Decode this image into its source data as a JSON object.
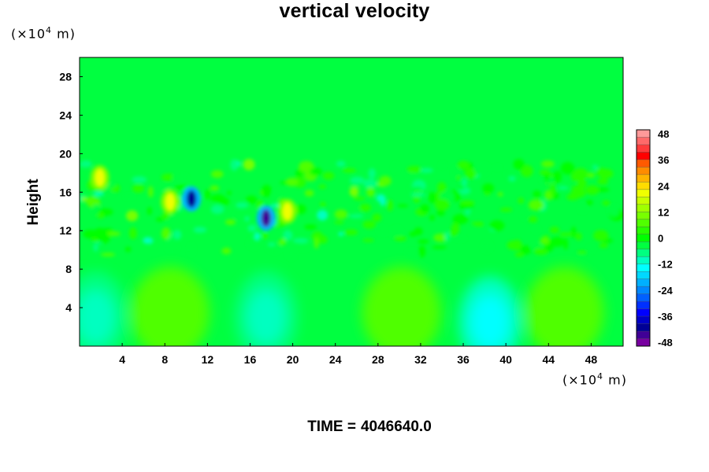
{
  "chart_data": {
    "type": "heatmap",
    "title": "vertical velocity",
    "ylabel": "Height",
    "xlabel": "",
    "x_unit_prefix": "(×10",
    "x_unit_exp": "4",
    "x_unit_suffix": " m)",
    "y_unit_prefix": "(×10",
    "y_unit_exp": "4",
    "y_unit_suffix": " m)",
    "xlim": [
      0,
      51
    ],
    "ylim": [
      0,
      30
    ],
    "xticks": [
      4,
      8,
      12,
      16,
      20,
      24,
      28,
      32,
      36,
      40,
      44,
      48
    ],
    "yticks": [
      4,
      8,
      12,
      16,
      20,
      24,
      28
    ],
    "colorbar": {
      "min": -48,
      "max": 48,
      "ticks": [
        48,
        36,
        24,
        12,
        0,
        -12,
        -24,
        -36,
        -48
      ],
      "colors": [
        "#ff9999",
        "#ff6a6a",
        "#ff3b3b",
        "#ff0000",
        "#ff5a00",
        "#ff8c00",
        "#ffb400",
        "#ffdc00",
        "#f0ff00",
        "#c8ff00",
        "#a0ff00",
        "#78ff00",
        "#50ff00",
        "#28ff00",
        "#00ff00",
        "#00ff40",
        "#00ff80",
        "#00ffc0",
        "#00ffff",
        "#00d8ff",
        "#00b0ff",
        "#0088ff",
        "#0060ff",
        "#0030ff",
        "#0000ff",
        "#0000c8",
        "#000096",
        "#400096",
        "#7800a0"
      ]
    },
    "background_value": -2,
    "features": [
      {
        "kind": "updraft-cell",
        "x": 8.5,
        "y": 3.5,
        "value": 6
      },
      {
        "kind": "updraft-cell",
        "x": 30.2,
        "y": 3.5,
        "value": 6
      },
      {
        "kind": "updraft-cell",
        "x": 45.5,
        "y": 3.5,
        "value": 6
      },
      {
        "kind": "downdraft-cell",
        "x": 1.5,
        "y": 3.0,
        "value": -8
      },
      {
        "kind": "downdraft-cell",
        "x": 17.5,
        "y": 3.0,
        "value": -8
      },
      {
        "kind": "downdraft-cell",
        "x": 38.5,
        "y": 2.5,
        "value": -10
      },
      {
        "kind": "strong-downdraft",
        "x": 10.5,
        "y": 15.3,
        "value": -40
      },
      {
        "kind": "strong-downdraft",
        "x": 17.5,
        "y": 13.3,
        "value": -44
      },
      {
        "kind": "strong-updraft",
        "x": 19.5,
        "y": 14.0,
        "value": 22
      },
      {
        "kind": "strong-updraft",
        "x": 8.5,
        "y": 15.0,
        "value": 20
      },
      {
        "kind": "strong-updraft",
        "x": 1.9,
        "y": 17.5,
        "value": 22
      }
    ]
  },
  "time": {
    "label": "TIME =",
    "value": "4046640.0"
  }
}
